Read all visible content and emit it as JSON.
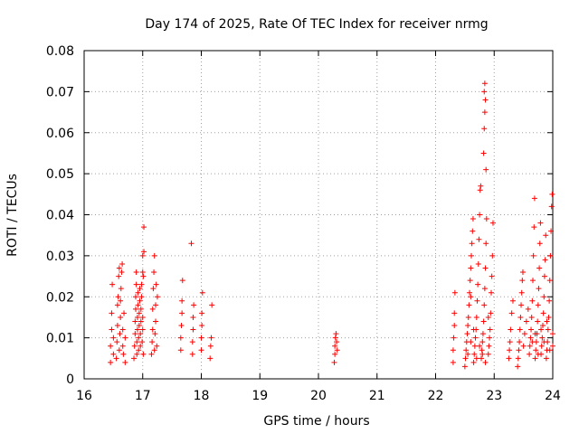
{
  "chart_data": {
    "type": "scatter",
    "title": "Day 174 of 2025, Rate Of TEC Index for receiver nrmg",
    "xlabel": "GPS time / hours",
    "ylabel": "ROTI / TECUs",
    "xlim": [
      16,
      24
    ],
    "ylim": [
      0,
      0.08
    ],
    "x_ticks": [
      "16",
      "17",
      "18",
      "19",
      "20",
      "21",
      "22",
      "23",
      "24"
    ],
    "y_ticks": [
      "0",
      "0.01",
      "0.02",
      "0.03",
      "0.04",
      "0.05",
      "0.06",
      "0.07",
      "0.08"
    ],
    "grid": true,
    "marker": "+",
    "color": "#ff0000",
    "series": [
      {
        "name": "ROTI",
        "points": [
          [
            16.45,
            0.004
          ],
          [
            16.45,
            0.008
          ],
          [
            16.47,
            0.012
          ],
          [
            16.47,
            0.016
          ],
          [
            16.48,
            0.023
          ],
          [
            16.5,
            0.006
          ],
          [
            16.5,
            0.01
          ],
          [
            16.55,
            0.005
          ],
          [
            16.56,
            0.009
          ],
          [
            16.57,
            0.013
          ],
          [
            16.57,
            0.018
          ],
          [
            16.58,
            0.02
          ],
          [
            16.59,
            0.025
          ],
          [
            16.6,
            0.027
          ],
          [
            16.6,
            0.007
          ],
          [
            16.61,
            0.011
          ],
          [
            16.62,
            0.015
          ],
          [
            16.62,
            0.019
          ],
          [
            16.63,
            0.022
          ],
          [
            16.64,
            0.026
          ],
          [
            16.65,
            0.028
          ],
          [
            16.66,
            0.008
          ],
          [
            16.66,
            0.012
          ],
          [
            16.67,
            0.006
          ],
          [
            16.68,
            0.016
          ],
          [
            16.7,
            0.01
          ],
          [
            16.7,
            0.004
          ],
          [
            16.85,
            0.005
          ],
          [
            16.86,
            0.008
          ],
          [
            16.87,
            0.011
          ],
          [
            16.87,
            0.014
          ],
          [
            16.88,
            0.017
          ],
          [
            16.88,
            0.02
          ],
          [
            16.89,
            0.023
          ],
          [
            16.89,
            0.026
          ],
          [
            16.9,
            0.006
          ],
          [
            16.9,
            0.009
          ],
          [
            16.91,
            0.012
          ],
          [
            16.91,
            0.015
          ],
          [
            16.92,
            0.018
          ],
          [
            16.92,
            0.021
          ],
          [
            16.93,
            0.007
          ],
          [
            16.93,
            0.01
          ],
          [
            16.94,
            0.013
          ],
          [
            16.94,
            0.016
          ],
          [
            16.95,
            0.019
          ],
          [
            16.95,
            0.022
          ],
          [
            16.96,
            0.008
          ],
          [
            16.96,
            0.011
          ],
          [
            16.97,
            0.014
          ],
          [
            16.97,
            0.017
          ],
          [
            16.98,
            0.02
          ],
          [
            16.98,
            0.023
          ],
          [
            16.99,
            0.009
          ],
          [
            17.0,
            0.012
          ],
          [
            17.0,
            0.015
          ],
          [
            17.01,
            0.006
          ],
          [
            17.01,
            0.025
          ],
          [
            17.0,
            0.03
          ],
          [
            17.02,
            0.031
          ],
          [
            17.02,
            0.037
          ],
          [
            17.0,
            0.026
          ],
          [
            17.15,
            0.006
          ],
          [
            17.16,
            0.009
          ],
          [
            17.17,
            0.012
          ],
          [
            17.17,
            0.017
          ],
          [
            17.18,
            0.022
          ],
          [
            17.19,
            0.026
          ],
          [
            17.2,
            0.03
          ],
          [
            17.2,
            0.007
          ],
          [
            17.21,
            0.011
          ],
          [
            17.22,
            0.014
          ],
          [
            17.22,
            0.018
          ],
          [
            17.23,
            0.023
          ],
          [
            17.24,
            0.008
          ],
          [
            17.25,
            0.02
          ],
          [
            17.65,
            0.007
          ],
          [
            17.65,
            0.01
          ],
          [
            17.66,
            0.013
          ],
          [
            17.67,
            0.016
          ],
          [
            17.67,
            0.019
          ],
          [
            17.68,
            0.024
          ],
          [
            17.85,
            0.006
          ],
          [
            17.85,
            0.009
          ],
          [
            17.86,
            0.012
          ],
          [
            17.86,
            0.015
          ],
          [
            17.87,
            0.018
          ],
          [
            17.83,
            0.033
          ],
          [
            18.0,
            0.007
          ],
          [
            18.0,
            0.01
          ],
          [
            18.01,
            0.013
          ],
          [
            18.01,
            0.016
          ],
          [
            18.02,
            0.021
          ],
          [
            18.15,
            0.005
          ],
          [
            18.16,
            0.008
          ],
          [
            18.17,
            0.01
          ],
          [
            18.18,
            0.018
          ],
          [
            20.27,
            0.004
          ],
          [
            20.28,
            0.006
          ],
          [
            20.28,
            0.008
          ],
          [
            20.29,
            0.01
          ],
          [
            20.3,
            0.011
          ],
          [
            20.31,
            0.009
          ],
          [
            20.32,
            0.007
          ],
          [
            22.3,
            0.004
          ],
          [
            22.3,
            0.007
          ],
          [
            22.31,
            0.01
          ],
          [
            22.32,
            0.013
          ],
          [
            22.32,
            0.016
          ],
          [
            22.33,
            0.021
          ],
          [
            22.5,
            0.003
          ],
          [
            22.51,
            0.005
          ],
          [
            22.52,
            0.007
          ],
          [
            22.53,
            0.009
          ],
          [
            22.54,
            0.011
          ],
          [
            22.55,
            0.013
          ],
          [
            22.56,
            0.015
          ],
          [
            22.57,
            0.018
          ],
          [
            22.58,
            0.021
          ],
          [
            22.59,
            0.024
          ],
          [
            22.6,
            0.027
          ],
          [
            22.61,
            0.03
          ],
          [
            22.62,
            0.033
          ],
          [
            22.63,
            0.036
          ],
          [
            22.64,
            0.039
          ],
          [
            22.65,
            0.004
          ],
          [
            22.66,
            0.006
          ],
          [
            22.67,
            0.008
          ],
          [
            22.68,
            0.01
          ],
          [
            22.69,
            0.012
          ],
          [
            22.7,
            0.015
          ],
          [
            22.71,
            0.019
          ],
          [
            22.72,
            0.023
          ],
          [
            22.73,
            0.028
          ],
          [
            22.74,
            0.034
          ],
          [
            22.75,
            0.04
          ],
          [
            22.76,
            0.046
          ],
          [
            22.77,
            0.047
          ],
          [
            22.78,
            0.005
          ],
          [
            22.79,
            0.007
          ],
          [
            22.8,
            0.009
          ],
          [
            22.81,
            0.011
          ],
          [
            22.82,
            0.014
          ],
          [
            22.83,
            0.018
          ],
          [
            22.84,
            0.022
          ],
          [
            22.85,
            0.027
          ],
          [
            22.86,
            0.033
          ],
          [
            22.87,
            0.039
          ],
          [
            22.82,
            0.055
          ],
          [
            22.83,
            0.061
          ],
          [
            22.84,
            0.065
          ],
          [
            22.85,
            0.068
          ],
          [
            22.83,
            0.07
          ],
          [
            22.84,
            0.072
          ],
          [
            22.86,
            0.051
          ],
          [
            22.9,
            0.006
          ],
          [
            22.91,
            0.008
          ],
          [
            22.92,
            0.01
          ],
          [
            22.93,
            0.012
          ],
          [
            22.94,
            0.016
          ],
          [
            22.95,
            0.021
          ],
          [
            22.96,
            0.025
          ],
          [
            22.97,
            0.03
          ],
          [
            22.98,
            0.038
          ],
          [
            22.55,
            0.006
          ],
          [
            22.6,
            0.009
          ],
          [
            22.65,
            0.012
          ],
          [
            22.7,
            0.005
          ],
          [
            22.75,
            0.008
          ],
          [
            22.8,
            0.006
          ],
          [
            22.85,
            0.004
          ],
          [
            22.9,
            0.015
          ],
          [
            22.6,
            0.02
          ],
          [
            23.25,
            0.005
          ],
          [
            23.26,
            0.007
          ],
          [
            23.27,
            0.009
          ],
          [
            23.28,
            0.012
          ],
          [
            23.3,
            0.016
          ],
          [
            23.32,
            0.019
          ],
          [
            23.4,
            0.003
          ],
          [
            23.41,
            0.005
          ],
          [
            23.42,
            0.007
          ],
          [
            23.43,
            0.009
          ],
          [
            23.44,
            0.012
          ],
          [
            23.45,
            0.015
          ],
          [
            23.46,
            0.018
          ],
          [
            23.47,
            0.021
          ],
          [
            23.48,
            0.024
          ],
          [
            23.49,
            0.026
          ],
          [
            23.5,
            0.008
          ],
          [
            23.52,
            0.011
          ],
          [
            23.55,
            0.014
          ],
          [
            23.58,
            0.017
          ],
          [
            23.6,
            0.006
          ],
          [
            23.61,
            0.008
          ],
          [
            23.62,
            0.01
          ],
          [
            23.63,
            0.012
          ],
          [
            23.64,
            0.015
          ],
          [
            23.65,
            0.019
          ],
          [
            23.66,
            0.024
          ],
          [
            23.67,
            0.03
          ],
          [
            23.68,
            0.037
          ],
          [
            23.69,
            0.044
          ],
          [
            23.7,
            0.005
          ],
          [
            23.71,
            0.007
          ],
          [
            23.72,
            0.009
          ],
          [
            23.73,
            0.011
          ],
          [
            23.74,
            0.014
          ],
          [
            23.75,
            0.018
          ],
          [
            23.76,
            0.022
          ],
          [
            23.77,
            0.027
          ],
          [
            23.78,
            0.033
          ],
          [
            23.79,
            0.038
          ],
          [
            23.8,
            0.006
          ],
          [
            23.81,
            0.008
          ],
          [
            23.82,
            0.01
          ],
          [
            23.83,
            0.013
          ],
          [
            23.84,
            0.016
          ],
          [
            23.85,
            0.02
          ],
          [
            23.86,
            0.025
          ],
          [
            23.87,
            0.029
          ],
          [
            23.88,
            0.035
          ],
          [
            23.89,
            0.005
          ],
          [
            23.9,
            0.007
          ],
          [
            23.91,
            0.009
          ],
          [
            23.92,
            0.012
          ],
          [
            23.93,
            0.015
          ],
          [
            23.94,
            0.019
          ],
          [
            23.95,
            0.024
          ],
          [
            23.96,
            0.03
          ],
          [
            23.97,
            0.036
          ],
          [
            23.98,
            0.042
          ],
          [
            23.99,
            0.045
          ],
          [
            24.0,
            0.008
          ],
          [
            23.65,
            0.009
          ],
          [
            23.7,
            0.011
          ],
          [
            23.75,
            0.006
          ],
          [
            23.8,
            0.012
          ],
          [
            23.85,
            0.009
          ],
          [
            23.9,
            0.014
          ],
          [
            23.95,
            0.007
          ],
          [
            24.0,
            0.011
          ]
        ]
      }
    ]
  }
}
